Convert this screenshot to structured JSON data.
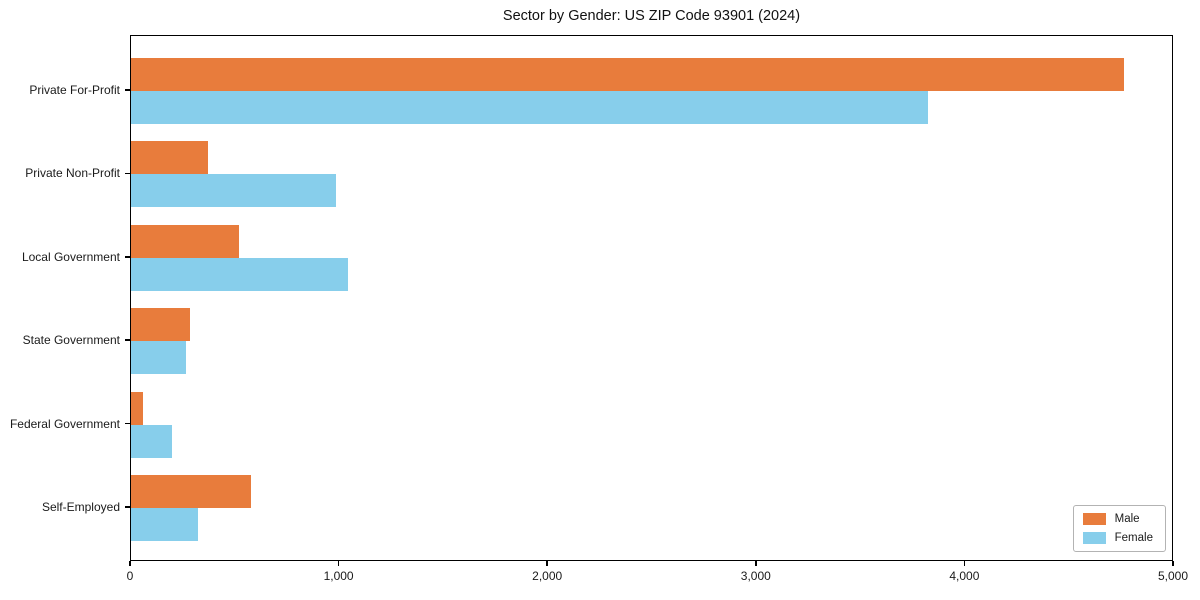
{
  "chart_data": {
    "type": "bar",
    "orientation": "horizontal",
    "title": "Sector by Gender: US ZIP Code 93901 (2024)",
    "categories": [
      "Private For-Profit",
      "Private Non-Profit",
      "Local Government",
      "State Government",
      "Federal Government",
      "Self-Employed"
    ],
    "series": [
      {
        "name": "Male",
        "color": "#E87C3C",
        "values": [
          4770,
          370,
          520,
          285,
          58,
          575
        ]
      },
      {
        "name": "Female",
        "color": "#87CEEB",
        "values": [
          3830,
          985,
          1040,
          265,
          197,
          320
        ]
      }
    ],
    "xlim": [
      0,
      5000
    ],
    "x_ticks": [
      0,
      1000,
      2000,
      3000,
      4000,
      5000
    ],
    "x_tick_labels": [
      "0",
      "1,000",
      "2,000",
      "3,000",
      "4,000",
      "5,000"
    ],
    "xlabel": "",
    "ylabel": "",
    "grid": false,
    "legend_position": "lower right",
    "axis_color": "#000000"
  }
}
